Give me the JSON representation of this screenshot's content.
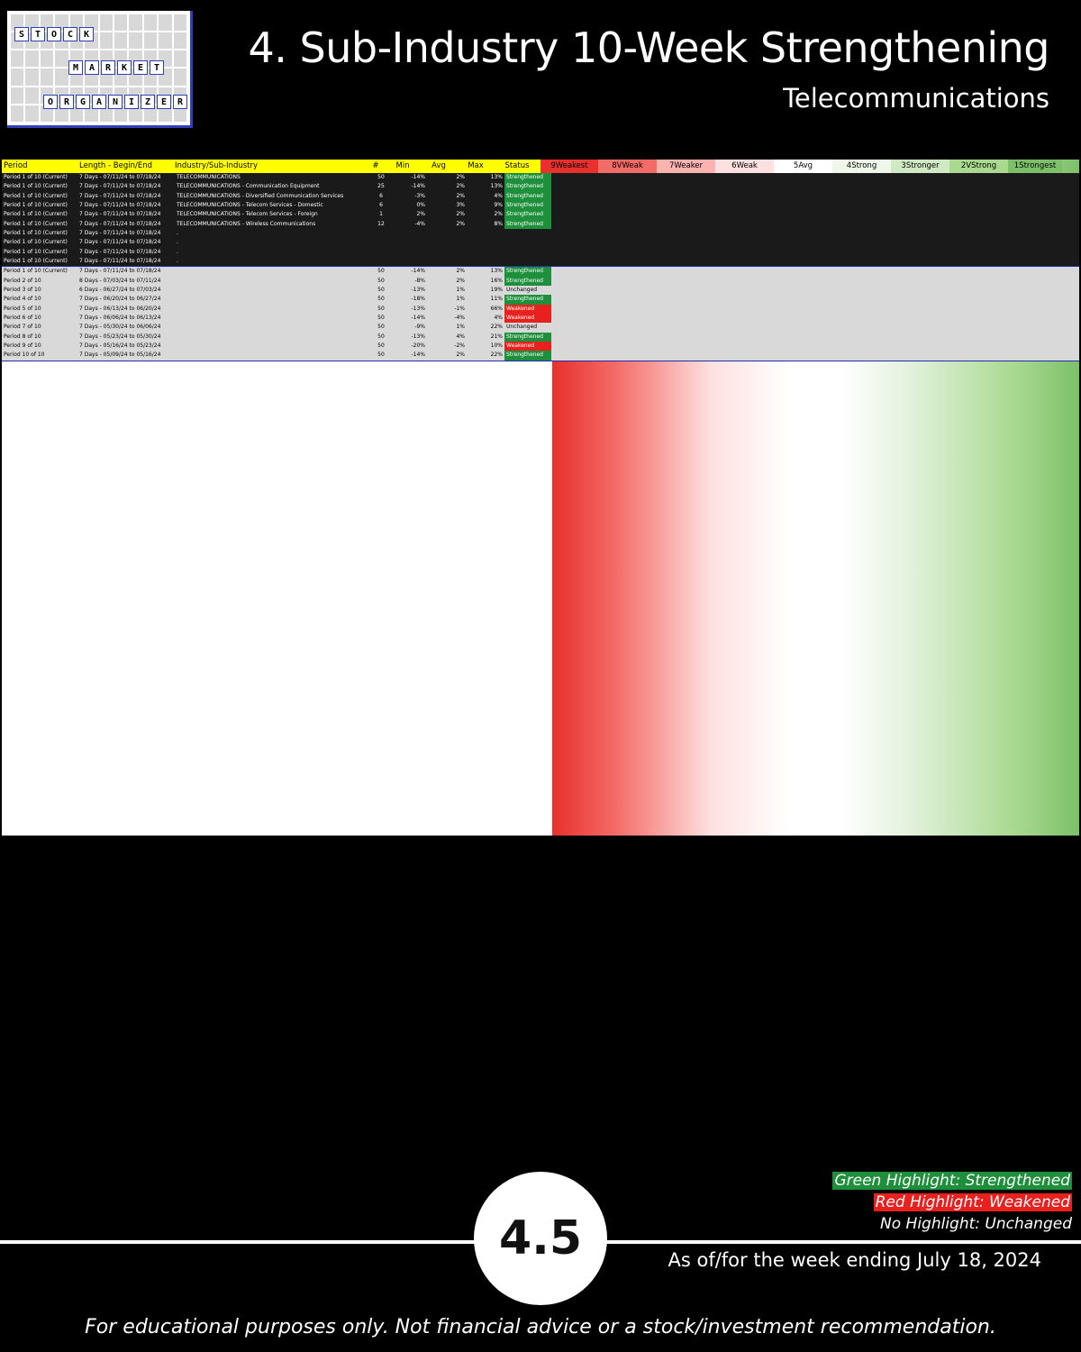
{
  "header": {
    "title": "4. Sub-Industry 10-Week Strengthening",
    "subtitle": "Telecommunications"
  },
  "logo": {
    "words": [
      "STOCK",
      "MARKET",
      "ORGANIZER"
    ]
  },
  "table": {
    "columns": [
      "Period",
      "Length - Begin/End",
      "Industry/Sub-Industry",
      "#",
      "Min",
      "Avg",
      "Max",
      "Status",
      "9Weakest",
      "8VWeak",
      "7Weaker",
      "6Weak",
      "5Avg",
      "4Strong",
      "3Stronger",
      "2VStrong",
      "1Strongest"
    ],
    "summary_rows": [
      {
        "period": "Period 1 of 10 (Current)",
        "length": "7 Days - 07/11/24 to 07/18/24",
        "industry": "TELECOMMUNICATIONS",
        "n": "50",
        "min": "-14%",
        "avg": "2%",
        "max": "13%",
        "status": "Strengthened"
      },
      {
        "period": "Period 1 of 10 (Current)",
        "length": "7 Days - 07/11/24 to 07/18/24",
        "industry": "TELECOMMUNICATIONS - Communication Equipment",
        "n": "25",
        "min": "-14%",
        "avg": "2%",
        "max": "13%",
        "status": "Strengthened"
      },
      {
        "period": "Period 1 of 10 (Current)",
        "length": "7 Days - 07/11/24 to 07/18/24",
        "industry": "TELECOMMUNICATIONS - Diversified Communication Services",
        "n": "6",
        "min": "-3%",
        "avg": "2%",
        "max": "4%",
        "status": "Strengthened"
      },
      {
        "period": "Period 1 of 10 (Current)",
        "length": "7 Days - 07/11/24 to 07/18/24",
        "industry": "TELECOMMUNICATIONS - Telecom Services - Domestic",
        "n": "6",
        "min": "0%",
        "avg": "3%",
        "max": "9%",
        "status": "Strengthened"
      },
      {
        "period": "Period 1 of 10 (Current)",
        "length": "7 Days - 07/11/24 to 07/18/24",
        "industry": "TELECOMMUNICATIONS - Telecom Services - Foreign",
        "n": "1",
        "min": "2%",
        "avg": "2%",
        "max": "2%",
        "status": "Strengthened"
      },
      {
        "period": "Period 1 of 10 (Current)",
        "length": "7 Days - 07/11/24 to 07/18/24",
        "industry": "TELECOMMUNICATIONS - Wireless Communications",
        "n": "12",
        "min": "-4%",
        "avg": "2%",
        "max": "8%",
        "status": "Strengthened"
      },
      {
        "period": "Period 1 of 10 (Current)",
        "length": "7 Days - 07/11/24 to 07/18/24",
        "industry": ".",
        "n": "",
        "min": "",
        "avg": "",
        "max": "",
        "status": ""
      },
      {
        "period": "Period 1 of 10 (Current)",
        "length": "7 Days - 07/11/24 to 07/18/24",
        "industry": ".",
        "n": "",
        "min": "",
        "avg": "",
        "max": "",
        "status": ""
      },
      {
        "period": "Period 1 of 10 (Current)",
        "length": "7 Days - 07/11/24 to 07/18/24",
        "industry": ".",
        "n": "",
        "min": "",
        "avg": "",
        "max": "",
        "status": ""
      },
      {
        "period": "Period 1 of 10 (Current)",
        "length": "7 Days - 07/11/24 to 07/18/24",
        "industry": ".",
        "n": "",
        "min": "",
        "avg": "",
        "max": "",
        "status": ""
      }
    ],
    "telecom_rows": [
      {
        "period": "Period 1 of 10 (Current)",
        "length": "7 Days - 07/11/24 to 07/18/24",
        "n": "50",
        "min": "-14%",
        "avg": "2%",
        "max": "13%",
        "status": "Strengthened"
      },
      {
        "period": "Period 2 of 10",
        "length": "8 Days - 07/03/24 to 07/11/24",
        "n": "50",
        "min": "-8%",
        "avg": "2%",
        "max": "16%",
        "status": "Strengthened"
      },
      {
        "period": "Period 3 of 10",
        "length": "6 Days - 06/27/24 to 07/03/24",
        "n": "50",
        "min": "-13%",
        "avg": "1%",
        "max": "19%",
        "status": "Unchanged"
      },
      {
        "period": "Period 4 of 10",
        "length": "7 Days - 06/20/24 to 06/27/24",
        "n": "50",
        "min": "-18%",
        "avg": "1%",
        "max": "11%",
        "status": "Strengthened"
      },
      {
        "period": "Period 5 of 10",
        "length": "7 Days - 06/13/24 to 06/20/24",
        "n": "50",
        "min": "-13%",
        "avg": "-1%",
        "max": "66%",
        "status": "Weakened"
      },
      {
        "period": "Period 6 of 10",
        "length": "7 Days - 06/06/24 to 06/13/24",
        "n": "50",
        "min": "-14%",
        "avg": "-4%",
        "max": "4%",
        "status": "Weakened"
      },
      {
        "period": "Period 7 of 10",
        "length": "7 Days - 05/30/24 to 06/06/24",
        "n": "50",
        "min": "-9%",
        "avg": "1%",
        "max": "22%",
        "status": "Unchanged"
      },
      {
        "period": "Period 8 of 10",
        "length": "7 Days - 05/23/24 to 05/30/24",
        "n": "50",
        "min": "-13%",
        "avg": "4%",
        "max": "21%",
        "status": "Strengthened"
      },
      {
        "period": "Period 9 of 10",
        "length": "7 Days - 05/16/24 to 05/23/24",
        "n": "50",
        "min": "-20%",
        "avg": "-2%",
        "max": "10%",
        "status": "Weakened"
      },
      {
        "period": "Period 10 of 10",
        "length": "7 Days - 05/09/24 to 05/16/24",
        "n": "50",
        "min": "-14%",
        "avg": "2%",
        "max": "22%",
        "status": "Strengthened"
      }
    ]
  },
  "legend": {
    "green": "Green Highlight: Strengthened",
    "red": "Red Highlight: Weakened",
    "none": "No Highlight: Unchanged"
  },
  "badge": "4.5",
  "asof": "As of/for the week ending July 18, 2024",
  "disclaimer": "For educational purposes only. Not financial advice or a stock/investment recommendation.",
  "colors": {
    "strengthened": "#1e8f3a",
    "weakened": "#e8211f",
    "header": "#ffff00",
    "divider": "#1f2bb5"
  }
}
